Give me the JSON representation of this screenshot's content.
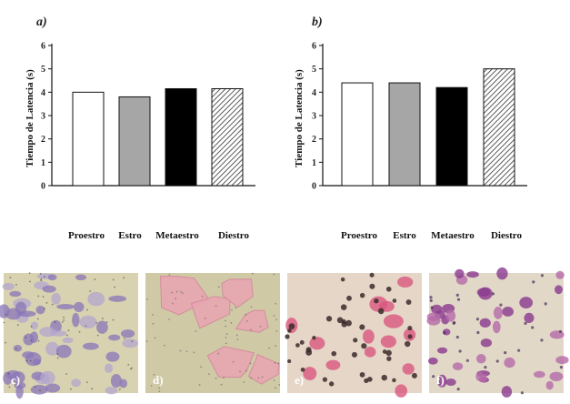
{
  "colors": {
    "proestro": "#ffffff",
    "estro": "#a6a6a6",
    "metaestro": "#000000",
    "diestro": "hatch",
    "photo_c_bg": "#d8d2b0",
    "photo_d_bg": "#cfc9a6",
    "photo_e_bg": "#e6d6c8",
    "photo_f_bg": "#e2d8c8"
  },
  "chart_data": [
    {
      "type": "bar",
      "panel": "a)",
      "categories": [
        "Proestro",
        "Estro",
        "Metaestro",
        "Diestro"
      ],
      "values": [
        4.0,
        3.8,
        4.15,
        4.15
      ],
      "fills": [
        "white",
        "gray",
        "black",
        "hatched"
      ],
      "ylabel": "Tiempo de Latencia (s)",
      "ylim": [
        0,
        6
      ],
      "yticks": [
        "0",
        "1",
        "2",
        "3",
        "4",
        "5",
        "6"
      ],
      "grid": false
    },
    {
      "type": "bar",
      "panel": "b)",
      "categories": [
        "Proestro",
        "Estro",
        "Metaestro",
        "Diestro"
      ],
      "values": [
        4.4,
        4.4,
        4.2,
        5.0
      ],
      "fills": [
        "white",
        "gray",
        "black",
        "hatched"
      ],
      "ylabel": "Tiempo de Latencia (s)",
      "ylim": [
        0,
        6
      ],
      "yticks": [
        "0",
        "1",
        "2",
        "3",
        "4",
        "5",
        "6"
      ],
      "grid": false
    }
  ],
  "photos": [
    {
      "label": "c)",
      "icon": "micrograph-basal-cells-icon"
    },
    {
      "label": "d)",
      "icon": "micrograph-cornified-cells-icon"
    },
    {
      "label": "e)",
      "icon": "micrograph-leukocytes-icon"
    },
    {
      "label": "f)",
      "icon": "micrograph-mixed-cells-icon"
    }
  ]
}
